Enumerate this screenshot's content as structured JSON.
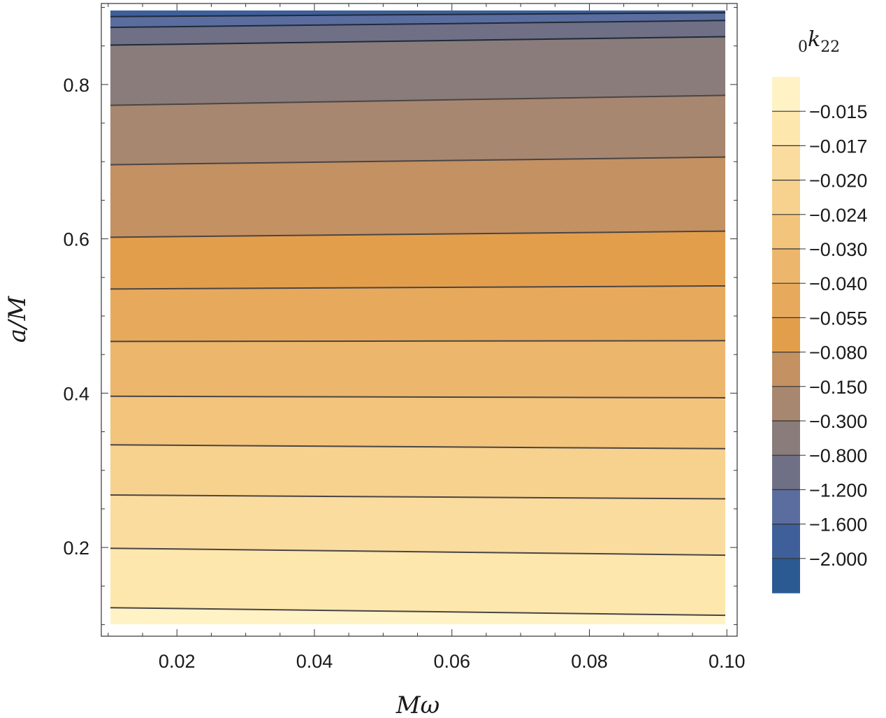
{
  "chart_data": {
    "type": "contour",
    "xlabel": "Mω",
    "ylabel": "a/M",
    "xlim": [
      0.009,
      0.1015
    ],
    "ylim": [
      0.085,
      0.905
    ],
    "x_ticks": [
      0.02,
      0.04,
      0.06,
      0.08,
      0.1
    ],
    "x_tick_labels": [
      "0.02",
      "0.04",
      "0.06",
      "0.08",
      "0.10"
    ],
    "y_ticks": [
      0.2,
      0.4,
      0.6,
      0.8
    ],
    "y_tick_labels": [
      "0.2",
      "0.4",
      "0.6",
      "0.8"
    ],
    "data_extent": {
      "x": [
        0.01,
        0.1
      ],
      "y": [
        0.1,
        0.9
      ]
    },
    "legend": {
      "title_sub": "0",
      "title_main": "k",
      "title_index": "22",
      "placement": "right",
      "levels": [
        "-0.015",
        "-0.017",
        "-0.020",
        "-0.024",
        "-0.030",
        "-0.040",
        "-0.055",
        "-0.080",
        "-0.150",
        "-0.300",
        "-0.800",
        "-1.200",
        "-1.600",
        "-2.000"
      ],
      "level_labels": [
        "−0.015",
        "−0.017",
        "−0.020",
        "−0.024",
        "−0.030",
        "−0.040",
        "−0.055",
        "−0.080",
        "−0.150",
        "−0.300",
        "−0.800",
        "−1.200",
        "−1.600",
        "−2.000"
      ],
      "band_colors": [
        "#fff3c6",
        "#fde7ad",
        "#fbdc9f",
        "#f7d18e",
        "#f2c47c",
        "#ecb76c",
        "#e7aa5c",
        "#e39e4c",
        "#c49162",
        "#a88770",
        "#8a7c7a",
        "#6f6f86",
        "#5a6d9e",
        "#3e5f9a",
        "#2a5a91"
      ]
    },
    "contours": [
      {
        "y_at_x_start": 0.122,
        "y_at_x_end": 0.112
      },
      {
        "y_at_x_start": 0.199,
        "y_at_x_end": 0.19
      },
      {
        "y_at_x_start": 0.268,
        "y_at_x_end": 0.263
      },
      {
        "y_at_x_start": 0.333,
        "y_at_x_end": 0.328
      },
      {
        "y_at_x_start": 0.396,
        "y_at_x_end": 0.394
      },
      {
        "y_at_x_start": 0.467,
        "y_at_x_end": 0.468
      },
      {
        "y_at_x_start": 0.535,
        "y_at_x_end": 0.539
      },
      {
        "y_at_x_start": 0.602,
        "y_at_x_end": 0.61
      },
      {
        "y_at_x_start": 0.696,
        "y_at_x_end": 0.706
      },
      {
        "y_at_x_start": 0.773,
        "y_at_x_end": 0.786
      },
      {
        "y_at_x_start": 0.851,
        "y_at_x_end": 0.862
      },
      {
        "y_at_x_start": 0.874,
        "y_at_x_end": 0.883
      },
      {
        "y_at_x_start": 0.888,
        "y_at_x_end": 0.893
      }
    ],
    "grid": false
  }
}
